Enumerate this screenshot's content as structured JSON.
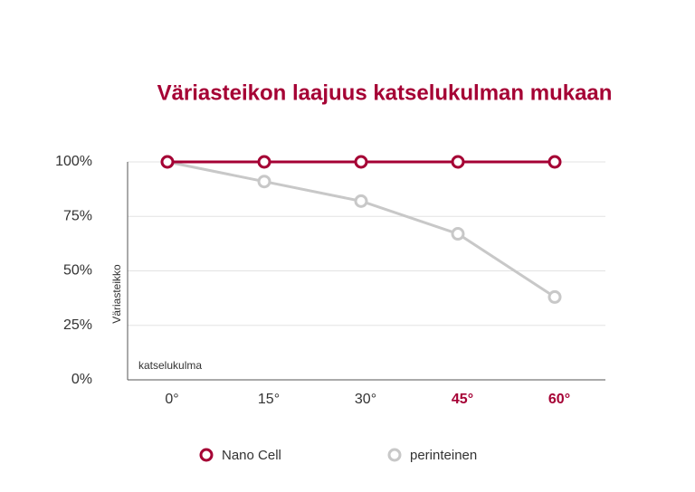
{
  "chart_data": {
    "type": "line",
    "title": "Väriasteikon laajuus katselukulman mukaan",
    "y_label": "Väriasteikko",
    "x_label": "katselukulma",
    "categories": [
      "0°",
      "15°",
      "30°",
      "45°",
      "60°"
    ],
    "series": [
      {
        "name": "Nano Cell",
        "color": "#a50034",
        "values": [
          100,
          100,
          100,
          100,
          100
        ]
      },
      {
        "name": "perinteinen",
        "color": "#c8c8c8",
        "values": [
          100,
          91,
          82,
          67,
          38
        ]
      }
    ],
    "ylim": [
      0,
      100
    ],
    "yticks": [
      {
        "value": 0,
        "label": "0%"
      },
      {
        "value": 25,
        "label": "25%"
      },
      {
        "value": 50,
        "label": "50%"
      },
      {
        "value": 75,
        "label": "75%"
      },
      {
        "value": 100,
        "label": "100%"
      }
    ],
    "grid": true
  }
}
